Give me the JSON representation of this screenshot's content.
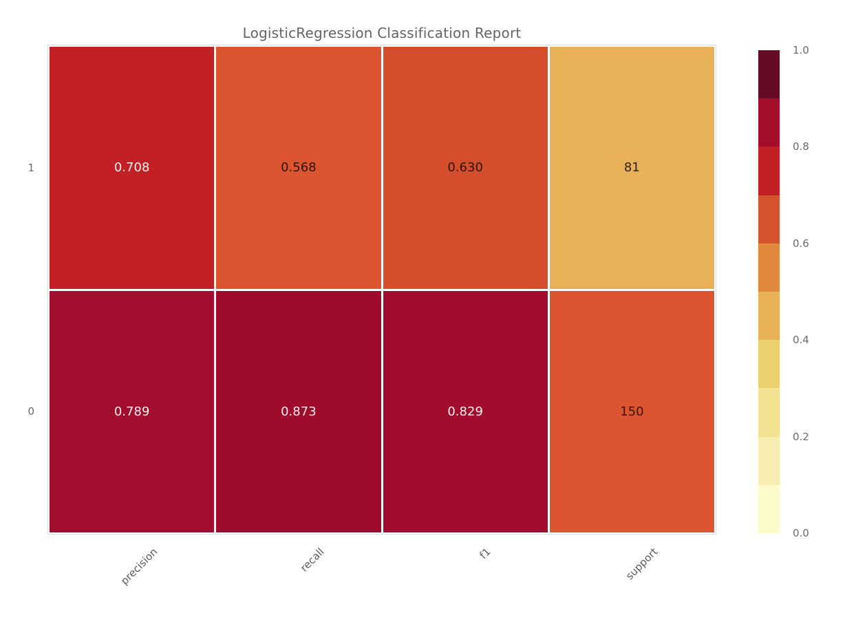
{
  "figure": {
    "title": "LogisticRegression Classification Report",
    "background_color": "#ffffff"
  },
  "chart_data": {
    "type": "heatmap",
    "title": "LogisticRegression Classification Report",
    "x_categories": [
      "precision",
      "recall",
      "f1",
      "support"
    ],
    "y_categories": [
      "1",
      "0"
    ],
    "rows": [
      {
        "label": "1",
        "cells": [
          {
            "column": "precision",
            "value": "0.708",
            "bg": "#c32026",
            "fg": "#f6eff0"
          },
          {
            "column": "recall",
            "value": "0.568",
            "bg": "#da5530",
            "fg": "#2d1208"
          },
          {
            "column": "f1",
            "value": "0.630",
            "bg": "#d54e2b",
            "fg": "#2d1208"
          },
          {
            "column": "support",
            "value": "81",
            "bg": "#e9b157",
            "fg": "#2b2009"
          }
        ]
      },
      {
        "label": "0",
        "cells": [
          {
            "column": "precision",
            "value": "0.789",
            "bg": "#a30d2e",
            "fg": "#f6eff0"
          },
          {
            "column": "recall",
            "value": "0.873",
            "bg": "#9e0b2b",
            "fg": "#f6eff0"
          },
          {
            "column": "f1",
            "value": "0.829",
            "bg": "#a20d2d",
            "fg": "#f6eff0"
          },
          {
            "column": "support",
            "value": "150",
            "bg": "#dc5530",
            "fg": "#33130a"
          }
        ]
      }
    ],
    "values_numeric": [
      [
        0.708,
        0.568,
        0.63,
        81
      ],
      [
        0.789,
        0.873,
        0.829,
        150
      ]
    ],
    "colorbar": {
      "range": [
        0.0,
        1.0
      ],
      "tick_labels": [
        "1.0",
        "0.8",
        "0.6",
        "0.4",
        "0.2",
        "0.0"
      ],
      "tick_values": [
        1.0,
        0.8,
        0.6,
        0.4,
        0.2,
        0.0
      ],
      "segment_colors_top_to_bottom": [
        "#650b26",
        "#a50e2b",
        "#c22025",
        "#d5532d",
        "#e0883c",
        "#e9b155",
        "#ecd06e",
        "#f2e291",
        "#f8edb0",
        "#fdfbca"
      ]
    },
    "grid_line_color": "#ffffff",
    "legend_position": "right-colorbar"
  }
}
